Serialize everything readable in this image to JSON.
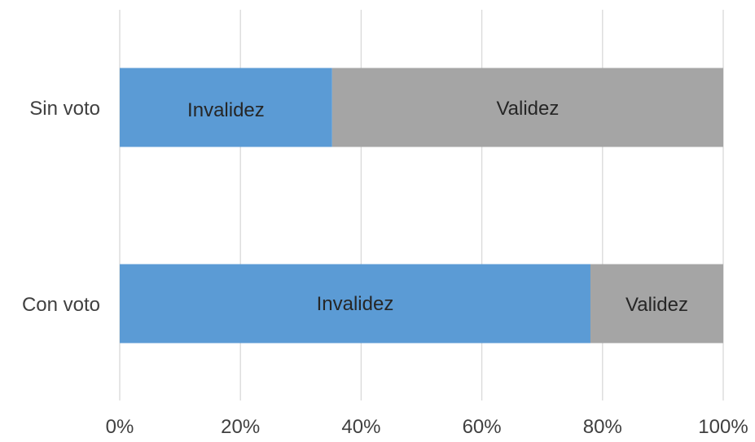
{
  "chart_data": {
    "type": "bar",
    "orientation": "horizontal",
    "stacked": "percent",
    "categories": [
      "Sin voto",
      "Con voto"
    ],
    "series": [
      {
        "name": "Invalidez",
        "values": [
          35.2,
          78
        ],
        "color": "#5b9bd5"
      },
      {
        "name": "Validez",
        "values": [
          64.8,
          22
        ],
        "color": "#a5a5a5"
      }
    ],
    "data_labels": [
      [
        "Invalidez",
        "Validez"
      ],
      [
        "Invalidez",
        "Validez"
      ]
    ],
    "xlim": [
      0,
      100
    ],
    "xticks": [
      "0%",
      "20%",
      "40%",
      "60%",
      "80%",
      "100%"
    ],
    "grid": "vertical",
    "legend": "none",
    "title": "",
    "xlabel": "",
    "ylabel": ""
  }
}
